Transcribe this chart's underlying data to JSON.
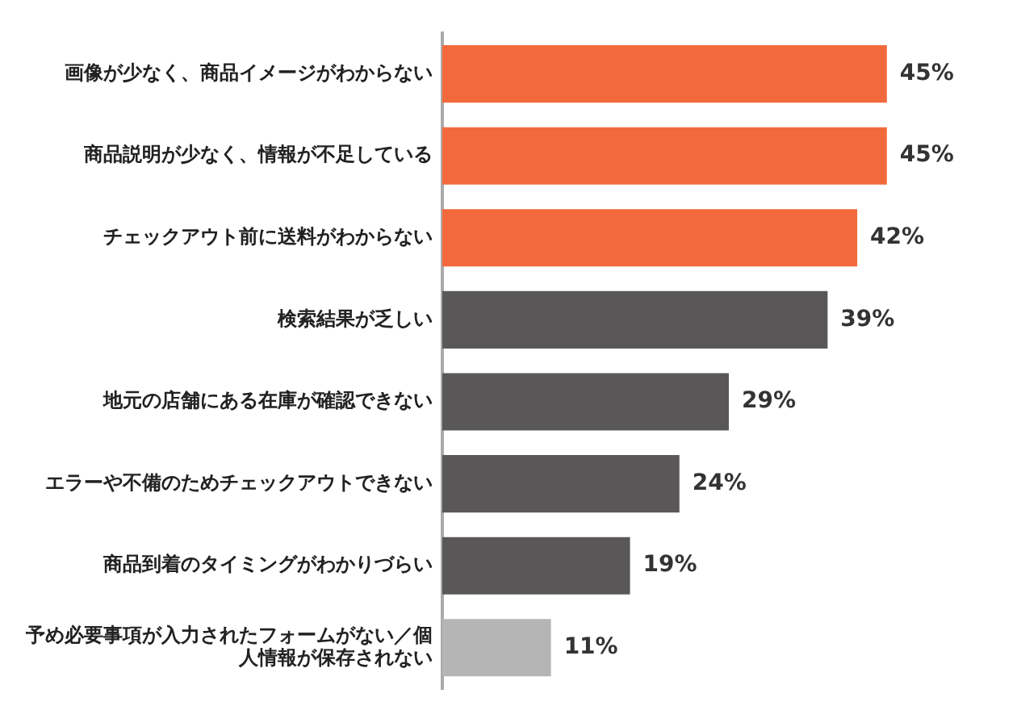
{
  "chart_data": {
    "type": "bar",
    "orientation": "horizontal",
    "categories": [
      "画像が少なく、商品イメージがわからない",
      "商品説明が少なく、情報が不足している",
      "チェックアウト前に送料がわからない",
      "検索結果が乏しい",
      "地元の店舗にある在庫が確認できない",
      "エラーや不備のためチェックアウトできない",
      "商品到着のタイミングがわかりづらい",
      "予め必要事項が入力されたフォームがない／個人情報が保存されない"
    ],
    "values": [
      45,
      45,
      42,
      39,
      29,
      24,
      19,
      11
    ],
    "colors": [
      "#f26a3b",
      "#f26a3b",
      "#f26a3b",
      "#595757",
      "#595757",
      "#595757",
      "#595757",
      "#b5b5b5"
    ],
    "value_labels": [
      "45%",
      "45%",
      "42%",
      "39%",
      "29%",
      "24%",
      "19%",
      "11%"
    ],
    "legend": false
  }
}
